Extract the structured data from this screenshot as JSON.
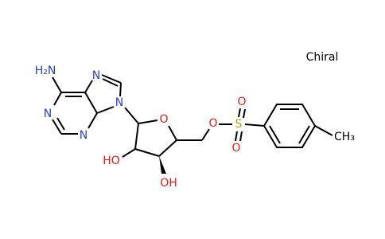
{
  "chiral_label": "Chiral",
  "atoms": [
    "H₂N",
    "N",
    "N",
    "N",
    "N",
    "O",
    "HO",
    "OH",
    "O",
    "S",
    "O",
    "O",
    "CH₃"
  ]
}
